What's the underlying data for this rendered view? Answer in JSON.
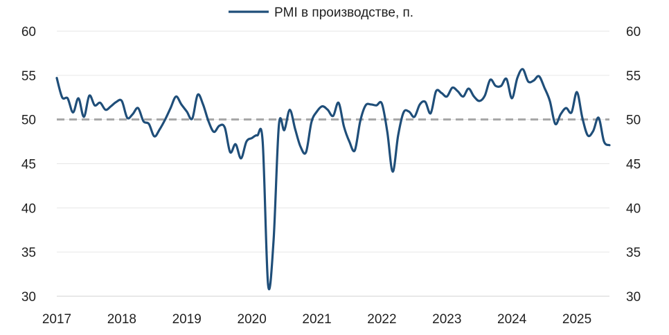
{
  "colors": {
    "series": "#1f4e79",
    "reference": "#a6a6a6",
    "grid": "#e6e6e6",
    "text": "#1f1f1f"
  },
  "chart_data": {
    "type": "line",
    "title": "",
    "xlabel": "",
    "ylabel": "",
    "ylim": [
      30,
      60
    ],
    "y_ticks": [
      30,
      35,
      40,
      45,
      50,
      55,
      60
    ],
    "y_ticks_right": [
      30,
      35,
      40,
      45,
      50,
      55,
      60
    ],
    "x_tick_labels": [
      "2017",
      "2018",
      "2019",
      "2020",
      "2021",
      "2022",
      "2023",
      "2024",
      "2025"
    ],
    "xlim": [
      "2017-01",
      "2025-07"
    ],
    "grid": "horizontal",
    "legend_position": "top-center",
    "reference_line": {
      "value": 50,
      "style": "dashed"
    },
    "series": [
      {
        "name": "PMI в производстве, п.",
        "x": [
          "2017-01",
          "2017-02",
          "2017-03",
          "2017-04",
          "2017-05",
          "2017-06",
          "2017-07",
          "2017-08",
          "2017-09",
          "2017-10",
          "2017-11",
          "2017-12",
          "2018-01",
          "2018-02",
          "2018-03",
          "2018-04",
          "2018-05",
          "2018-06",
          "2018-07",
          "2018-08",
          "2018-09",
          "2018-10",
          "2018-11",
          "2018-12",
          "2019-01",
          "2019-02",
          "2019-03",
          "2019-04",
          "2019-05",
          "2019-06",
          "2019-07",
          "2019-08",
          "2019-09",
          "2019-10",
          "2019-11",
          "2019-12",
          "2020-01",
          "2020-02",
          "2020-03",
          "2020-04",
          "2020-05",
          "2020-06",
          "2020-07",
          "2020-08",
          "2020-09",
          "2020-10",
          "2020-11",
          "2020-12",
          "2021-01",
          "2021-02",
          "2021-03",
          "2021-04",
          "2021-05",
          "2021-06",
          "2021-07",
          "2021-08",
          "2021-09",
          "2021-10",
          "2021-11",
          "2021-12",
          "2022-01",
          "2022-02",
          "2022-03",
          "2022-04",
          "2022-05",
          "2022-06",
          "2022-07",
          "2022-08",
          "2022-09",
          "2022-10",
          "2022-11",
          "2022-12",
          "2023-01",
          "2023-02",
          "2023-03",
          "2023-04",
          "2023-05",
          "2023-06",
          "2023-07",
          "2023-08",
          "2023-09",
          "2023-10",
          "2023-11",
          "2023-12",
          "2024-01",
          "2024-02",
          "2024-03",
          "2024-04",
          "2024-05",
          "2024-06",
          "2024-07",
          "2024-08",
          "2024-09",
          "2024-10",
          "2024-11",
          "2024-12",
          "2025-01",
          "2025-02",
          "2025-03",
          "2025-04",
          "2025-05",
          "2025-06",
          "2025-07"
        ],
        "values": [
          54.7,
          52.5,
          52.4,
          50.8,
          52.4,
          50.3,
          52.7,
          51.6,
          51.9,
          51.1,
          51.5,
          52.0,
          52.1,
          50.2,
          50.6,
          51.3,
          49.8,
          49.5,
          48.1,
          48.9,
          50.0,
          51.3,
          52.6,
          51.7,
          50.9,
          50.1,
          52.8,
          51.7,
          49.8,
          48.6,
          49.3,
          49.1,
          46.3,
          47.2,
          45.6,
          47.5,
          47.9,
          48.2,
          47.5,
          31.3,
          36.2,
          49.4,
          48.8,
          51.1,
          48.9,
          46.9,
          46.3,
          49.7,
          50.9,
          51.5,
          51.1,
          50.4,
          51.9,
          49.2,
          47.5,
          46.5,
          49.8,
          51.6,
          51.7,
          51.6,
          51.8,
          48.6,
          44.1,
          48.2,
          50.8,
          50.9,
          50.3,
          51.7,
          52.0,
          50.7,
          53.2,
          53.0,
          52.6,
          53.6,
          53.2,
          52.6,
          53.5,
          52.6,
          52.1,
          52.7,
          54.5,
          53.8,
          53.8,
          54.6,
          52.4,
          54.7,
          55.7,
          54.3,
          54.4,
          54.9,
          53.6,
          52.1,
          49.5,
          50.6,
          51.3,
          50.8,
          53.1,
          50.2,
          48.2,
          48.7,
          50.2,
          47.5,
          47.1
        ]
      }
    ]
  }
}
